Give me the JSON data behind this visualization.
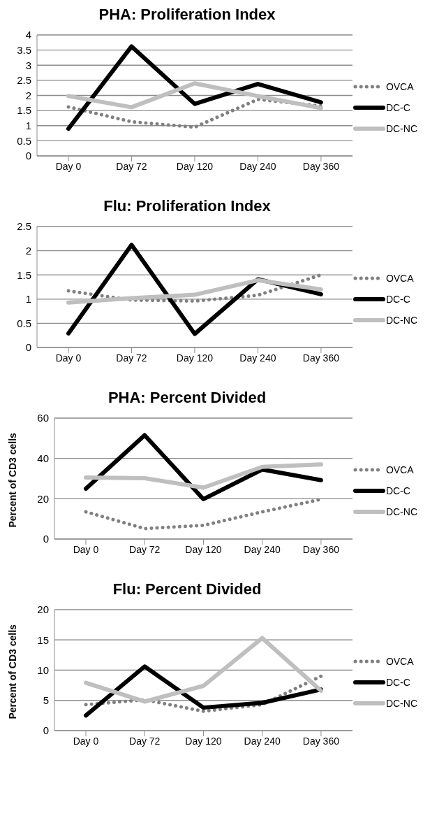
{
  "chart_data": [
    {
      "type": "line",
      "title": "PHA: Proliferation Index",
      "categories": [
        "Day 0",
        "Day 72",
        "Day 120",
        "Day 240",
        "Day 360"
      ],
      "ylim": [
        0,
        4
      ],
      "yticks": [
        0,
        0.5,
        1,
        1.5,
        2,
        2.5,
        3,
        3.5,
        4
      ],
      "grid": "y",
      "legend": "right",
      "series": [
        {
          "name": "OVCA",
          "color": "#808080",
          "line_style": "dotted",
          "values": [
            1.62,
            1.13,
            0.95,
            1.87,
            1.65
          ]
        },
        {
          "name": "DC-C",
          "color": "#000000",
          "line_style": "solid",
          "values": [
            0.9,
            3.62,
            1.72,
            2.38,
            1.77
          ]
        },
        {
          "name": "DC-NC",
          "color": "#bfbfbf",
          "line_style": "solid",
          "values": [
            1.98,
            1.61,
            2.4,
            1.98,
            1.58
          ]
        }
      ]
    },
    {
      "type": "line",
      "title": "Flu: Proliferation Index",
      "categories": [
        "Day 0",
        "Day 72",
        "Day 120",
        "Day 240",
        "Day 360"
      ],
      "ylim": [
        0,
        2.5
      ],
      "yticks": [
        0,
        0.5,
        1,
        1.5,
        2,
        2.5
      ],
      "grid": "y",
      "legend": "right",
      "series": [
        {
          "name": "OVCA",
          "color": "#808080",
          "line_style": "dotted",
          "values": [
            1.17,
            0.98,
            0.96,
            1.08,
            1.5
          ]
        },
        {
          "name": "DC-C",
          "color": "#000000",
          "line_style": "solid",
          "values": [
            0.29,
            2.12,
            0.28,
            1.41,
            1.1
          ]
        },
        {
          "name": "DC-NC",
          "color": "#bfbfbf",
          "line_style": "solid",
          "values": [
            0.93,
            1.02,
            1.09,
            1.39,
            1.2
          ]
        }
      ]
    },
    {
      "type": "line",
      "title": "PHA: Percent Divided",
      "ylabel": "Percent of CD3 cells",
      "categories": [
        "Day 0",
        "Day 72",
        "Day 120",
        "Day 240",
        "Day 360"
      ],
      "ylim": [
        0,
        60
      ],
      "yticks": [
        0,
        20,
        40,
        60
      ],
      "grid": "y",
      "legend": "right",
      "series": [
        {
          "name": "OVCA",
          "color": "#808080",
          "line_style": "dotted",
          "values": [
            13.5,
            5.2,
            6.8,
            13.5,
            19.7
          ]
        },
        {
          "name": "DC-C",
          "color": "#000000",
          "line_style": "solid",
          "values": [
            25,
            51.5,
            19.8,
            34.5,
            29.2
          ]
        },
        {
          "name": "DC-NC",
          "color": "#bfbfbf",
          "line_style": "solid",
          "values": [
            30.5,
            30.2,
            25.5,
            35.8,
            37
          ]
        }
      ]
    },
    {
      "type": "line",
      "title": "Flu: Percent Divided",
      "ylabel": "Percent of CD3 cells",
      "categories": [
        "Day 0",
        "Day 72",
        "Day 120",
        "Day 240",
        "Day 360"
      ],
      "ylim": [
        0,
        20
      ],
      "yticks": [
        0,
        5,
        10,
        15,
        20
      ],
      "grid": "y",
      "legend": "right",
      "series": [
        {
          "name": "OVCA",
          "color": "#808080",
          "line_style": "dotted",
          "values": [
            4.3,
            5.1,
            3.2,
            4.3,
            9
          ]
        },
        {
          "name": "DC-C",
          "color": "#000000",
          "line_style": "solid",
          "values": [
            2.5,
            10.6,
            3.8,
            4.6,
            6.8
          ]
        },
        {
          "name": "DC-NC",
          "color": "#bfbfbf",
          "line_style": "solid",
          "values": [
            7.9,
            4.8,
            7.4,
            15.3,
            6.6
          ]
        }
      ]
    }
  ]
}
